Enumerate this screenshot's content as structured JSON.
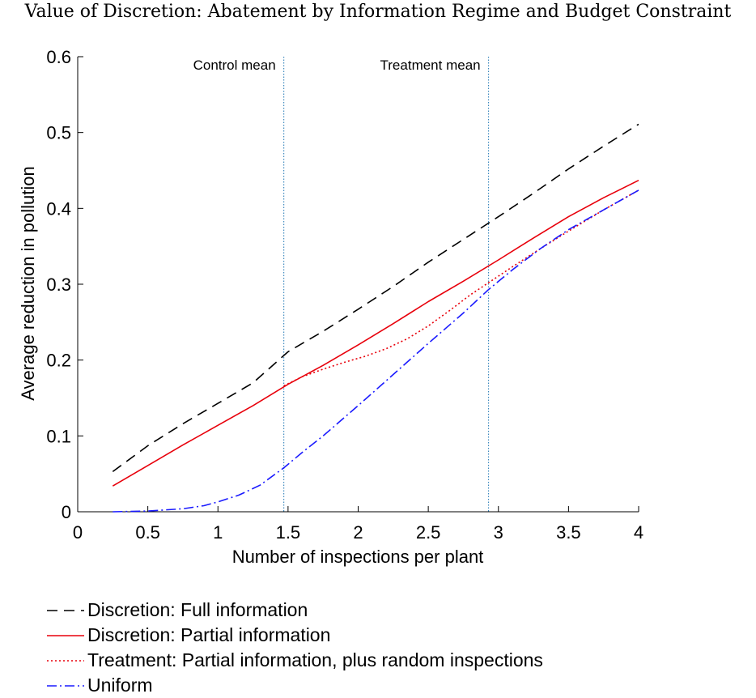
{
  "chart_data": {
    "type": "line",
    "title": "Value of Discretion: Abatement by Information Regime and Budget Constraint",
    "xlabel": "Number of inspections per plant",
    "ylabel": "Average reduction in pollution",
    "xlim": [
      0,
      4
    ],
    "ylim": [
      0,
      0.6
    ],
    "xticks": [
      0,
      0.5,
      1,
      1.5,
      2,
      2.5,
      3,
      3.5,
      4
    ],
    "xtick_labels": [
      "0",
      "0.5",
      "1",
      "1.5",
      "2",
      "2.5",
      "3",
      "3.5",
      "4"
    ],
    "yticks": [
      0,
      0.1,
      0.2,
      0.3,
      0.4,
      0.5,
      0.6
    ],
    "ytick_labels": [
      "0",
      "0.1",
      "0.2",
      "0.3",
      "0.4",
      "0.5",
      "0.6"
    ],
    "grid": false,
    "legend_position": "bottom",
    "vlines": [
      {
        "label": "Control mean",
        "x": 1.47,
        "color": "#1f77b4"
      },
      {
        "label": "Treatment mean",
        "x": 2.93,
        "color": "#1f77b4"
      }
    ],
    "series": [
      {
        "name": "Discretion: Full information",
        "color": "#000000",
        "dash": "13,8",
        "x": [
          0.25,
          0.5,
          0.75,
          1.0,
          1.25,
          1.5,
          1.75,
          2.0,
          2.25,
          2.5,
          2.75,
          3.0,
          3.25,
          3.5,
          3.75,
          4.0
        ],
        "y": [
          0.053,
          0.087,
          0.116,
          0.143,
          0.17,
          0.211,
          0.238,
          0.267,
          0.297,
          0.329,
          0.359,
          0.389,
          0.42,
          0.452,
          0.482,
          0.511
        ]
      },
      {
        "name": "Discretion: Partial information",
        "color": "#e8000b",
        "dash": "",
        "x": [
          0.25,
          0.5,
          0.75,
          1.0,
          1.25,
          1.5,
          1.75,
          2.0,
          2.25,
          2.5,
          2.75,
          3.0,
          3.25,
          3.5,
          3.75,
          4.0
        ],
        "y": [
          0.034,
          0.061,
          0.088,
          0.114,
          0.14,
          0.168,
          0.193,
          0.22,
          0.248,
          0.277,
          0.304,
          0.332,
          0.361,
          0.389,
          0.414,
          0.437
        ]
      },
      {
        "name": "Treatment: Partial information, plus random inspections",
        "color": "#e8000b",
        "dash": "2,3",
        "x": [
          1.47,
          1.6,
          1.75,
          1.9,
          2.05,
          2.2,
          2.35,
          2.5,
          2.65,
          2.8,
          2.93,
          3.1,
          3.3,
          3.5,
          3.75,
          4.0
        ],
        "y": [
          0.166,
          0.178,
          0.188,
          0.197,
          0.205,
          0.215,
          0.228,
          0.245,
          0.265,
          0.286,
          0.302,
          0.323,
          0.347,
          0.37,
          0.398,
          0.424
        ]
      },
      {
        "name": "Uniform",
        "color": "#1a1aff",
        "dash": "12,4,2,4",
        "x": [
          0.25,
          0.5,
          0.75,
          0.9,
          1.0,
          1.15,
          1.3,
          1.47,
          1.6,
          1.75,
          2.0,
          2.25,
          2.5,
          2.75,
          2.93,
          3.1,
          3.3,
          3.5,
          3.75,
          4.0
        ],
        "y": [
          0.0,
          0.001,
          0.004,
          0.008,
          0.013,
          0.022,
          0.035,
          0.058,
          0.078,
          0.1,
          0.14,
          0.181,
          0.222,
          0.262,
          0.293,
          0.319,
          0.347,
          0.372,
          0.398,
          0.424
        ]
      }
    ]
  }
}
